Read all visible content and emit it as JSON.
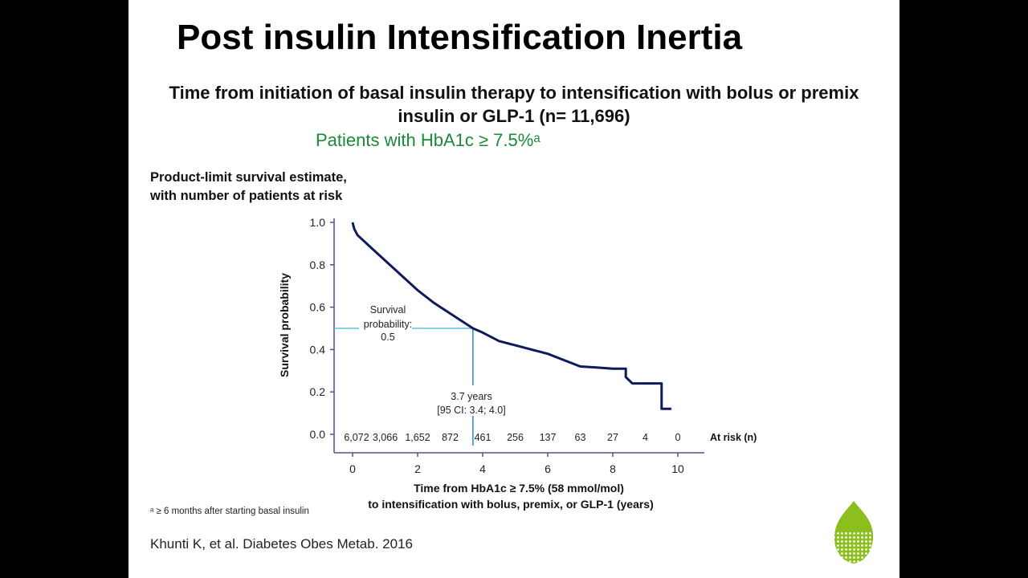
{
  "slide": {
    "title": "Post insulin Intensification Inertia",
    "subtitle_line1": "Time from initiation of basal insulin therapy to intensification with bolus or premix",
    "subtitle_line2": "insulin or GLP-1 (n= 11,696)",
    "population": "Patients with HbA1c ≥ 7.5%ᵃ",
    "chart_heading_line1": "Product-limit survival estimate,",
    "chart_heading_line2": "with number of patients at risk",
    "footnote": "ᵃ ≥ 6 months after starting basal insulin",
    "reference": "Khunti K, et al. Diabetes Obes Metab. 2016",
    "logo_color": "#8cbf1e"
  },
  "chart_data": {
    "type": "line",
    "subtype": "kaplan-meier step",
    "xlabel_line1": "Time from HbA1c ≥ 7.5% (58 mmol/mol)",
    "xlabel_line2": "to intensification with bolus, premix, or GLP-1 (years)",
    "ylabel": "Survival probability",
    "xlim": [
      0,
      10
    ],
    "ylim": [
      0,
      1
    ],
    "x_ticks": [
      "0",
      "2",
      "4",
      "6",
      "8",
      "10"
    ],
    "y_ticks": [
      "0.0",
      "0.2",
      "0.4",
      "0.6",
      "0.8",
      "1.0"
    ],
    "line_color": "#0d1a5c",
    "reference_color": "#5bc0e8",
    "series": [
      {
        "x": [
          0,
          0.05,
          0.15,
          0.5,
          1,
          1.5,
          2,
          2.5,
          3,
          3.7,
          4,
          4.5,
          5,
          5.5,
          6,
          6.5,
          7,
          7.5,
          8,
          8.4,
          8.4,
          8.6,
          9.5,
          9.5,
          9.8
        ],
        "y": [
          1.0,
          0.97,
          0.94,
          0.89,
          0.82,
          0.75,
          0.68,
          0.62,
          0.57,
          0.5,
          0.48,
          0.44,
          0.42,
          0.4,
          0.38,
          0.35,
          0.32,
          0.315,
          0.31,
          0.31,
          0.27,
          0.24,
          0.24,
          0.12,
          0.12
        ]
      }
    ],
    "annotations": {
      "median_x": 3.7,
      "median_y": 0.5,
      "survival_label_1": "Survival",
      "survival_label_2": "probability:",
      "survival_label_3": "0.5",
      "median_label_1": "3.7 years",
      "median_label_2": "[95 CI: 3.4; 4.0]"
    },
    "at_risk_label": "At risk (n)",
    "at_risk": [
      {
        "x": 0,
        "n": "6,072"
      },
      {
        "x": 1,
        "n": "3,066"
      },
      {
        "x": 2,
        "n": "1,652"
      },
      {
        "x": 3,
        "n": "872"
      },
      {
        "x": 4,
        "n": "461"
      },
      {
        "x": 5,
        "n": "256"
      },
      {
        "x": 6,
        "n": "137"
      },
      {
        "x": 7,
        "n": "63"
      },
      {
        "x": 8,
        "n": "27"
      },
      {
        "x": 9,
        "n": "4"
      },
      {
        "x": 10,
        "n": "0"
      }
    ]
  }
}
